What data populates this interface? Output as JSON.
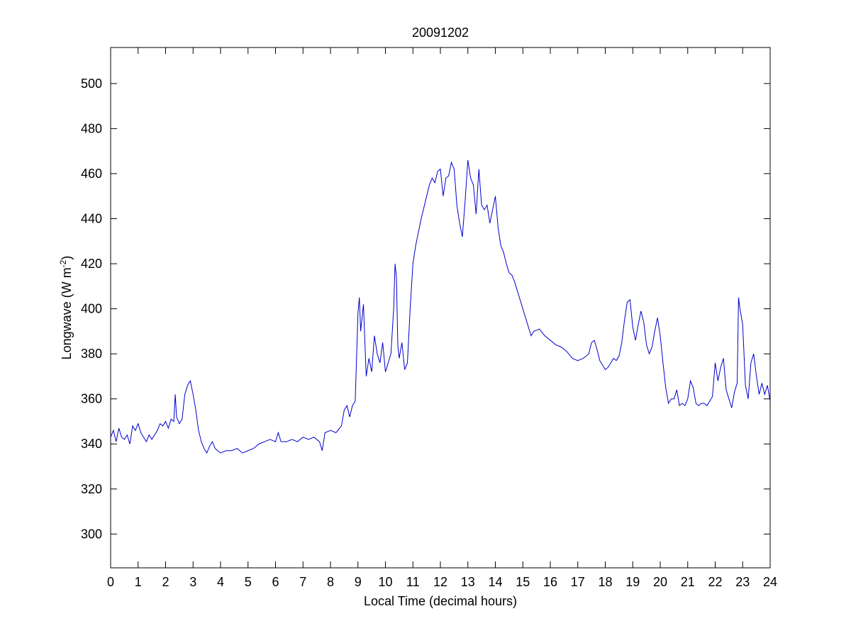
{
  "chart_data": {
    "type": "line",
    "title": "20091202",
    "xlabel": "Local Time (decimal hours)",
    "ylabel": {
      "prefix": "Longwave (W m",
      "superscript": "-2",
      "suffix": ")"
    },
    "xlim": [
      0,
      24
    ],
    "ylim": [
      285,
      516
    ],
    "xticks": [
      0,
      1,
      2,
      3,
      4,
      5,
      6,
      7,
      8,
      9,
      10,
      11,
      12,
      13,
      14,
      15,
      16,
      17,
      18,
      19,
      20,
      21,
      22,
      23,
      24
    ],
    "yticks": [
      300,
      320,
      340,
      360,
      380,
      400,
      420,
      440,
      460,
      480,
      500
    ],
    "grid": false,
    "legend": "none",
    "series": [
      {
        "color": "#0000cc",
        "x": [
          0,
          0.1,
          0.2,
          0.3,
          0.4,
          0.5,
          0.6,
          0.7,
          0.8,
          0.9,
          1.0,
          1.1,
          1.2,
          1.3,
          1.4,
          1.5,
          1.6,
          1.7,
          1.8,
          1.9,
          2.0,
          2.1,
          2.2,
          2.3,
          2.35,
          2.4,
          2.5,
          2.6,
          2.7,
          2.8,
          2.9,
          3.0,
          3.1,
          3.2,
          3.3,
          3.4,
          3.5,
          3.6,
          3.7,
          3.8,
          3.9,
          4.0,
          4.2,
          4.4,
          4.6,
          4.8,
          5.0,
          5.2,
          5.4,
          5.6,
          5.8,
          6.0,
          6.1,
          6.2,
          6.4,
          6.6,
          6.8,
          7.0,
          7.2,
          7.4,
          7.6,
          7.7,
          7.8,
          8.0,
          8.2,
          8.4,
          8.5,
          8.6,
          8.7,
          8.8,
          8.9,
          9.0,
          9.05,
          9.1,
          9.2,
          9.3,
          9.4,
          9.5,
          9.6,
          9.7,
          9.8,
          9.9,
          10.0,
          10.1,
          10.2,
          10.3,
          10.35,
          10.4,
          10.45,
          10.5,
          10.6,
          10.7,
          10.8,
          10.9,
          11.0,
          11.1,
          11.2,
          11.3,
          11.4,
          11.5,
          11.6,
          11.7,
          11.8,
          11.9,
          12.0,
          12.1,
          12.2,
          12.3,
          12.4,
          12.5,
          12.6,
          12.7,
          12.8,
          12.9,
          13.0,
          13.1,
          13.2,
          13.3,
          13.4,
          13.5,
          13.6,
          13.7,
          13.8,
          13.9,
          14.0,
          14.1,
          14.2,
          14.3,
          14.4,
          14.5,
          14.6,
          14.7,
          14.8,
          14.9,
          15.0,
          15.1,
          15.2,
          15.3,
          15.4,
          15.6,
          15.8,
          16.0,
          16.2,
          16.4,
          16.6,
          16.8,
          17.0,
          17.2,
          17.4,
          17.5,
          17.6,
          17.7,
          17.8,
          17.9,
          18.0,
          18.1,
          18.2,
          18.3,
          18.4,
          18.5,
          18.6,
          18.7,
          18.8,
          18.9,
          19.0,
          19.1,
          19.2,
          19.3,
          19.4,
          19.5,
          19.6,
          19.7,
          19.8,
          19.9,
          20.0,
          20.1,
          20.2,
          20.3,
          20.4,
          20.5,
          20.6,
          20.7,
          20.8,
          20.9,
          21.0,
          21.1,
          21.2,
          21.3,
          21.4,
          21.5,
          21.6,
          21.7,
          21.8,
          21.9,
          22.0,
          22.1,
          22.2,
          22.3,
          22.4,
          22.5,
          22.6,
          22.7,
          22.8,
          22.85,
          22.9,
          23.0,
          23.1,
          23.2,
          23.3,
          23.4,
          23.5,
          23.6,
          23.7,
          23.8,
          23.9,
          24.0
        ],
        "y": [
          343,
          346,
          341,
          347,
          343,
          342,
          344,
          340,
          348,
          346,
          349,
          345,
          343,
          341,
          344,
          342,
          344,
          346,
          349,
          348,
          350,
          347,
          351,
          350,
          362,
          352,
          349,
          351,
          362,
          366,
          368,
          362,
          355,
          346,
          341,
          338,
          336,
          339,
          341,
          338,
          337,
          336,
          337,
          337,
          338,
          336,
          337,
          338,
          340,
          341,
          342,
          341,
          345,
          341,
          341,
          342,
          341,
          343,
          342,
          343,
          341,
          337,
          345,
          346,
          345,
          348,
          355,
          357,
          352,
          357,
          359,
          398,
          405,
          390,
          402,
          370,
          378,
          372,
          388,
          380,
          376,
          385,
          372,
          376,
          380,
          400,
          420,
          414,
          384,
          378,
          385,
          373,
          376,
          400,
          420,
          428,
          434,
          440,
          445,
          450,
          455,
          458,
          456,
          461,
          462,
          450,
          458,
          459,
          465,
          462,
          446,
          438,
          432,
          448,
          466,
          458,
          455,
          442,
          462,
          446,
          444,
          446,
          438,
          444,
          450,
          436,
          428,
          425,
          420,
          416,
          415,
          412,
          408,
          404,
          400,
          396,
          392,
          388,
          390,
          391,
          388,
          386,
          384,
          383,
          381,
          378,
          377,
          378,
          380,
          385,
          386,
          382,
          377,
          375,
          373,
          374,
          376,
          378,
          377,
          379,
          385,
          395,
          403,
          404,
          392,
          386,
          393,
          399,
          394,
          384,
          380,
          383,
          390,
          396,
          388,
          376,
          365,
          358,
          360,
          360,
          364,
          357,
          358,
          357,
          360,
          368,
          365,
          358,
          357,
          358,
          358,
          357,
          359,
          361,
          376,
          368,
          374,
          378,
          364,
          360,
          356,
          363,
          367,
          405,
          400,
          393,
          366,
          360,
          376,
          380,
          370,
          362,
          367,
          362,
          366,
          359
        ]
      }
    ]
  }
}
